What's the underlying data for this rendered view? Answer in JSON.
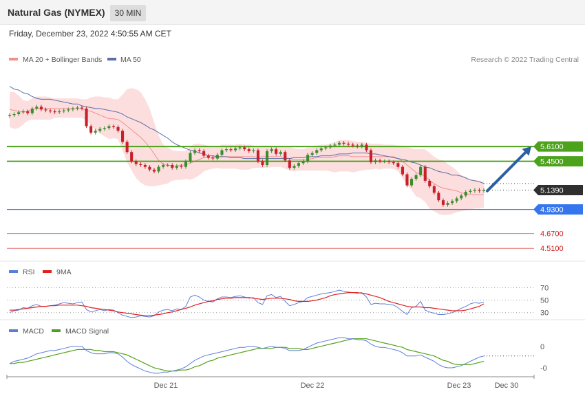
{
  "header": {
    "instrument": "Natural Gas (NYMEX)",
    "timeframe": "30 MIN",
    "datetime": "Friday, December 23, 2022 4:50:55 AM CET"
  },
  "legend": {
    "ma20": "MA 20 + Bollinger Bands",
    "ma50": "MA 50",
    "credit": "Research © 2022 Trading Central",
    "rsi": "RSI",
    "rsi_ma": "9MA",
    "macd": "MACD",
    "macd_signal": "MACD Signal"
  },
  "colors": {
    "up": "#3c8c2e",
    "down": "#c8202a",
    "bollinger_fill": "#fbd8d8",
    "ma20": "#f09090",
    "ma50": "#5a6ea8",
    "resistance": "#4ca21a",
    "support": "#3576ee",
    "target": "#e07070",
    "current": "#333333",
    "arrow": "#2a5fa0",
    "rsi": "#5a7ed8",
    "rsi_ma": "#e02020",
    "macd": "#5a7ed8",
    "macd_signal": "#52a018"
  },
  "chart_data": [
    {
      "type": "candlestick",
      "title": "Natural Gas (NYMEX) 30 MIN",
      "x_ticks": [
        "Dec 21",
        "Dec 22",
        "Dec 23",
        "Dec 30"
      ],
      "ylim": [
        4.4,
        6.45
      ],
      "price_levels": [
        {
          "name": "resistance-2",
          "value": 5.61,
          "label": "5.6100",
          "kind": "resistance"
        },
        {
          "name": "resistance-1",
          "value": 5.45,
          "label": "5.4500",
          "kind": "resistance"
        },
        {
          "name": "current",
          "value": 5.139,
          "label": "5.1390",
          "kind": "current"
        },
        {
          "name": "support",
          "value": 4.93,
          "label": "4.9300",
          "kind": "support"
        },
        {
          "name": "target-1",
          "value": 4.67,
          "label": "4.6700",
          "kind": "target"
        },
        {
          "name": "target-2",
          "value": 4.51,
          "label": "4.5100",
          "kind": "target"
        }
      ],
      "forecast_arrow": {
        "from": 5.13,
        "to": 5.61
      },
      "closes": [
        5.95,
        5.96,
        5.98,
        5.99,
        5.97,
        6.02,
        6.04,
        6.01,
        6.0,
        5.99,
        5.98,
        5.99,
        6.0,
        6.01,
        6.02,
        6.03,
        6.02,
        5.83,
        5.76,
        5.78,
        5.8,
        5.81,
        5.83,
        5.82,
        5.78,
        5.66,
        5.55,
        5.45,
        5.42,
        5.41,
        5.39,
        5.36,
        5.34,
        5.39,
        5.41,
        5.41,
        5.38,
        5.4,
        5.39,
        5.45,
        5.54,
        5.57,
        5.56,
        5.51,
        5.49,
        5.48,
        5.52,
        5.57,
        5.58,
        5.57,
        5.59,
        5.6,
        5.58,
        5.56,
        5.57,
        5.45,
        5.41,
        5.56,
        5.58,
        5.53,
        5.55,
        5.46,
        5.38,
        5.4,
        5.43,
        5.45,
        5.52,
        5.54,
        5.57,
        5.59,
        5.6,
        5.62,
        5.63,
        5.65,
        5.64,
        5.63,
        5.62,
        5.61,
        5.63,
        5.57,
        5.44,
        5.46,
        5.45,
        5.45,
        5.44,
        5.43,
        5.39,
        5.31,
        5.19,
        5.26,
        5.3,
        5.39,
        5.24,
        5.18,
        5.11,
        5.03,
        4.98,
        5.0,
        5.02,
        5.05,
        5.08,
        5.12,
        5.13,
        5.14,
        5.13,
        5.14
      ],
      "bollinger": {
        "upper": [
          6.2,
          6.2,
          6.16,
          6.11,
          6.1,
          6.13,
          6.15,
          6.15,
          6.15,
          6.14,
          6.13,
          6.13,
          6.13,
          6.13,
          6.13,
          6.13,
          6.12,
          6.12,
          6.14,
          6.15,
          6.15,
          6.14,
          6.14,
          6.12,
          6.12,
          6.17,
          6.23,
          6.24,
          6.23,
          6.2,
          6.12,
          6.02,
          5.87,
          5.73,
          5.63,
          5.6,
          5.57,
          5.56,
          5.56,
          5.56,
          5.61,
          5.64,
          5.64,
          5.63,
          5.62,
          5.61,
          5.61,
          5.63,
          5.63,
          5.63,
          5.63,
          5.64,
          5.63,
          5.63,
          5.62,
          5.61,
          5.62,
          5.62,
          5.61,
          5.61,
          5.61,
          5.61,
          5.61,
          5.59,
          5.58,
          5.58,
          5.6,
          5.6,
          5.62,
          5.63,
          5.63,
          5.64,
          5.66,
          5.68,
          5.68,
          5.68,
          5.67,
          5.66,
          5.66,
          5.65,
          5.64,
          5.64,
          5.64,
          5.63,
          5.63,
          5.63,
          5.62,
          5.62,
          5.61,
          5.59,
          5.58,
          5.58,
          5.58,
          5.54,
          5.5,
          5.47,
          5.46,
          5.42,
          5.39,
          5.35,
          5.3,
          5.28,
          5.25,
          5.25,
          5.24,
          5.23
        ],
        "lower": [
          5.82,
          5.8,
          5.81,
          5.85,
          5.89,
          5.9,
          5.9,
          5.9,
          5.9,
          5.9,
          5.92,
          5.92,
          5.92,
          5.92,
          5.92,
          5.92,
          5.92,
          5.89,
          5.84,
          5.79,
          5.75,
          5.72,
          5.69,
          5.7,
          5.69,
          5.57,
          5.44,
          5.35,
          5.27,
          5.22,
          5.19,
          5.18,
          5.18,
          5.19,
          5.2,
          5.21,
          5.24,
          5.25,
          5.25,
          5.26,
          5.25,
          5.27,
          5.3,
          5.34,
          5.36,
          5.37,
          5.38,
          5.37,
          5.37,
          5.37,
          5.37,
          5.36,
          5.36,
          5.36,
          5.38,
          5.38,
          5.38,
          5.38,
          5.39,
          5.39,
          5.39,
          5.37,
          5.35,
          5.34,
          5.35,
          5.35,
          5.35,
          5.35,
          5.35,
          5.35,
          5.35,
          5.34,
          5.33,
          5.34,
          5.34,
          5.34,
          5.33,
          5.34,
          5.35,
          5.36,
          5.36,
          5.37,
          5.36,
          5.37,
          5.37,
          5.37,
          5.34,
          5.27,
          5.2,
          5.14,
          5.07,
          5.05,
          5.01,
          4.94,
          4.91,
          4.88,
          4.87,
          4.87,
          4.88,
          4.9,
          4.91,
          4.92,
          4.93,
          4.94,
          4.94,
          4.95
        ],
        "ma20": [
          6.01,
          6.0,
          5.99,
          5.98,
          5.99,
          6.01,
          6.02,
          6.02,
          6.02,
          6.02,
          6.02,
          6.02,
          6.02,
          6.02,
          6.02,
          6.02,
          6.02,
          6.0,
          5.99,
          5.97,
          5.95,
          5.93,
          5.91,
          5.91,
          5.9,
          5.87,
          5.83,
          5.79,
          5.75,
          5.71,
          5.66,
          5.6,
          5.53,
          5.46,
          5.42,
          5.41,
          5.4,
          5.4,
          5.41,
          5.41,
          5.43,
          5.45,
          5.47,
          5.49,
          5.49,
          5.49,
          5.49,
          5.5,
          5.5,
          5.5,
          5.5,
          5.5,
          5.5,
          5.5,
          5.5,
          5.49,
          5.5,
          5.5,
          5.5,
          5.5,
          5.5,
          5.49,
          5.48,
          5.47,
          5.47,
          5.47,
          5.47,
          5.48,
          5.49,
          5.49,
          5.49,
          5.49,
          5.5,
          5.51,
          5.51,
          5.51,
          5.5,
          5.5,
          5.5,
          5.5,
          5.5,
          5.5,
          5.5,
          5.5,
          5.5,
          5.5,
          5.48,
          5.45,
          5.41,
          5.37,
          5.33,
          5.31,
          5.29,
          5.24,
          5.21,
          5.18,
          5.16,
          5.15,
          5.14,
          5.13,
          5.11,
          5.1,
          5.09,
          5.09,
          5.09,
          5.09
        ]
      },
      "ma50": [
        6.26,
        6.23,
        6.22,
        6.19,
        6.18,
        6.15,
        6.13,
        6.12,
        6.12,
        6.12,
        6.11,
        6.1,
        6.09,
        6.08,
        6.07,
        6.07,
        6.05,
        6.04,
        6.03,
        6.02,
        6.02,
        6.01,
        6.0,
        5.99,
        5.98,
        5.96,
        5.93,
        5.91,
        5.89,
        5.87,
        5.84,
        5.81,
        5.79,
        5.76,
        5.73,
        5.7,
        5.66,
        5.63,
        5.61,
        5.59,
        5.57,
        5.56,
        5.54,
        5.53,
        5.51,
        5.51,
        5.5,
        5.5,
        5.5,
        5.49,
        5.49,
        5.49,
        5.48,
        5.48,
        5.48,
        5.48,
        5.48,
        5.48,
        5.48,
        5.48,
        5.48,
        5.48,
        5.48,
        5.49,
        5.49,
        5.49,
        5.5,
        5.5,
        5.5,
        5.51,
        5.51,
        5.51,
        5.52,
        5.53,
        5.53,
        5.53,
        5.54,
        5.54,
        5.54,
        5.54,
        5.53,
        5.53,
        5.52,
        5.51,
        5.5,
        5.49,
        5.48,
        5.47,
        5.46,
        5.44,
        5.43,
        5.41,
        5.39,
        5.38,
        5.36,
        5.34,
        5.33,
        5.32,
        5.3,
        5.3,
        5.29,
        5.27,
        5.25,
        5.24,
        5.23,
        5.21
      ]
    },
    {
      "type": "line",
      "title": "RSI",
      "levels": [
        {
          "value": 70,
          "label": "70"
        },
        {
          "value": 50,
          "label": "50"
        },
        {
          "value": 30,
          "label": "30"
        }
      ],
      "ylim": [
        22,
        88
      ],
      "series": [
        {
          "name": "RSI",
          "values": [
            30,
            33,
            34,
            38,
            37,
            41,
            43,
            40,
            40,
            41,
            42,
            44,
            46,
            45,
            44,
            46,
            47,
            35,
            31,
            33,
            35,
            33,
            35,
            34,
            30,
            26,
            24,
            22,
            23,
            25,
            24,
            23,
            25,
            31,
            34,
            35,
            33,
            36,
            35,
            40,
            55,
            58,
            55,
            50,
            48,
            47,
            52,
            55,
            55,
            54,
            56,
            57,
            55,
            53,
            54,
            46,
            43,
            57,
            59,
            54,
            56,
            48,
            41,
            43,
            46,
            48,
            54,
            56,
            58,
            60,
            61,
            62,
            64,
            66,
            64,
            63,
            62,
            61,
            62,
            55,
            43,
            45,
            44,
            44,
            43,
            42,
            38,
            32,
            27,
            38,
            40,
            48,
            34,
            31,
            29,
            27,
            27,
            28,
            30,
            33,
            37,
            40,
            44,
            46,
            45,
            47
          ]
        },
        {
          "name": "9MA",
          "values": [
            34,
            34,
            35,
            36,
            37,
            38,
            39,
            40,
            40,
            41,
            41,
            42,
            42,
            42,
            42,
            42,
            41,
            40,
            38,
            37,
            36,
            35,
            34,
            33,
            31,
            30,
            29,
            28,
            27,
            26,
            25,
            25,
            26,
            27,
            28,
            30,
            31,
            33,
            35,
            37,
            39,
            42,
            44,
            46,
            48,
            49,
            51,
            52,
            53,
            53,
            54,
            54,
            54,
            54,
            53,
            52,
            51,
            52,
            53,
            53,
            53,
            52,
            51,
            49,
            48,
            48,
            48,
            49,
            50,
            52,
            54,
            57,
            59,
            60,
            61,
            62,
            62,
            62,
            61,
            60,
            58,
            56,
            54,
            51,
            48,
            46,
            44,
            42,
            40,
            39,
            39,
            39,
            38,
            38,
            37,
            36,
            35,
            34,
            33,
            33,
            33,
            34,
            36,
            38,
            40,
            44
          ]
        }
      ]
    },
    {
      "type": "line",
      "title": "MACD",
      "y_ticks": [
        "0",
        "-0"
      ],
      "ylim": [
        -0.21,
        0.16
      ],
      "series": [
        {
          "name": "MACD",
          "values": [
            -0.1,
            -0.08,
            -0.07,
            -0.06,
            -0.05,
            -0.03,
            -0.01,
            0.0,
            0.01,
            0.02,
            0.02,
            0.03,
            0.04,
            0.05,
            0.06,
            0.06,
            0.06,
            0.02,
            0.0,
            -0.01,
            -0.01,
            -0.01,
            0.0,
            0.0,
            -0.01,
            -0.04,
            -0.08,
            -0.11,
            -0.13,
            -0.15,
            -0.17,
            -0.18,
            -0.19,
            -0.19,
            -0.18,
            -0.18,
            -0.17,
            -0.16,
            -0.15,
            -0.13,
            -0.1,
            -0.07,
            -0.05,
            -0.03,
            -0.02,
            -0.01,
            0.0,
            0.01,
            0.02,
            0.03,
            0.04,
            0.05,
            0.05,
            0.06,
            0.06,
            0.05,
            0.04,
            0.05,
            0.06,
            0.05,
            0.05,
            0.04,
            0.02,
            0.02,
            0.02,
            0.03,
            0.05,
            0.07,
            0.09,
            0.1,
            0.11,
            0.12,
            0.13,
            0.14,
            0.14,
            0.13,
            0.13,
            0.12,
            0.12,
            0.11,
            0.08,
            0.06,
            0.05,
            0.05,
            0.04,
            0.03,
            0.02,
            0.0,
            -0.03,
            -0.03,
            -0.03,
            -0.02,
            -0.04,
            -0.06,
            -0.08,
            -0.11,
            -0.13,
            -0.14,
            -0.14,
            -0.13,
            -0.12,
            -0.1,
            -0.08,
            -0.06,
            -0.04,
            -0.03
          ]
        },
        {
          "name": "MACD Signal",
          "values": [
            -0.1,
            -0.1,
            -0.09,
            -0.09,
            -0.08,
            -0.07,
            -0.06,
            -0.05,
            -0.04,
            -0.03,
            -0.02,
            -0.01,
            0.0,
            0.01,
            0.02,
            0.03,
            0.03,
            0.03,
            0.03,
            0.02,
            0.02,
            0.01,
            0.01,
            0.01,
            0.0,
            -0.01,
            -0.02,
            -0.04,
            -0.06,
            -0.08,
            -0.1,
            -0.12,
            -0.14,
            -0.15,
            -0.16,
            -0.17,
            -0.17,
            -0.17,
            -0.16,
            -0.16,
            -0.15,
            -0.13,
            -0.12,
            -0.1,
            -0.08,
            -0.07,
            -0.05,
            -0.04,
            -0.03,
            -0.02,
            -0.01,
            0.0,
            0.01,
            0.02,
            0.03,
            0.04,
            0.04,
            0.04,
            0.04,
            0.05,
            0.05,
            0.05,
            0.04,
            0.04,
            0.04,
            0.03,
            0.03,
            0.04,
            0.05,
            0.06,
            0.07,
            0.08,
            0.09,
            0.1,
            0.11,
            0.12,
            0.13,
            0.13,
            0.13,
            0.13,
            0.12,
            0.11,
            0.1,
            0.09,
            0.08,
            0.07,
            0.06,
            0.05,
            0.03,
            0.02,
            0.01,
            0.0,
            -0.01,
            -0.02,
            -0.03,
            -0.05,
            -0.07,
            -0.08,
            -0.1,
            -0.11,
            -0.11,
            -0.11,
            -0.11,
            -0.1,
            -0.09,
            -0.08
          ]
        }
      ]
    }
  ]
}
